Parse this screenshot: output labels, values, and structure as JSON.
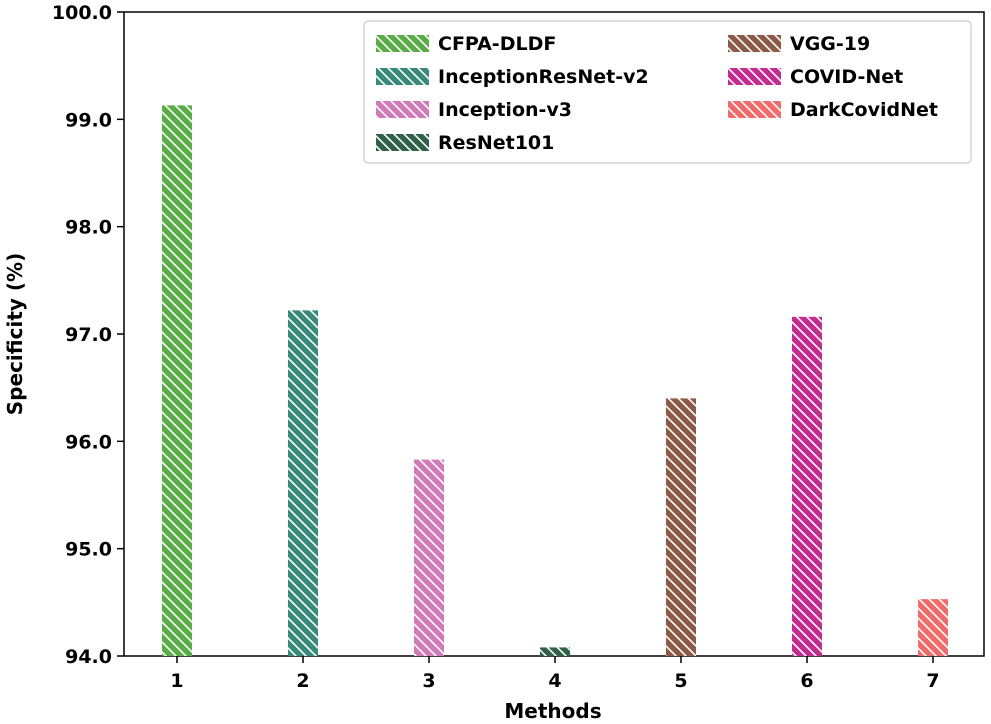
{
  "chart_data": {
    "type": "bar",
    "title": "",
    "xlabel": "Methods",
    "ylabel": "Specificity (%)",
    "ylim": [
      94.0,
      100.0
    ],
    "yticks": [
      "94.0",
      "95.0",
      "96.0",
      "97.0",
      "98.0",
      "99.0",
      "100.0"
    ],
    "categories": [
      "1",
      "2",
      "3",
      "4",
      "5",
      "6",
      "7"
    ],
    "series": [
      {
        "name": "CFPA-DLDF",
        "category": "1",
        "value": 99.13,
        "color": "#5aad46"
      },
      {
        "name": "InceptionResNet-v2",
        "category": "2",
        "value": 97.22,
        "color": "#378979"
      },
      {
        "name": "Inception-v3",
        "category": "3",
        "value": 95.83,
        "color": "#d07ab7"
      },
      {
        "name": "ResNet101",
        "category": "4",
        "value": 94.08,
        "color": "#2f6048"
      },
      {
        "name": "VGG-19",
        "category": "5",
        "value": 96.4,
        "color": "#8c5a47"
      },
      {
        "name": "COVID-Net",
        "category": "6",
        "value": 97.16,
        "color": "#c32c90"
      },
      {
        "name": "DarkCovidNet",
        "category": "7",
        "value": 94.53,
        "color": "#f26b6b"
      }
    ],
    "hatch": "diagonal-white",
    "grid": false,
    "legend_position": "top-right",
    "legend_columns": 2
  }
}
